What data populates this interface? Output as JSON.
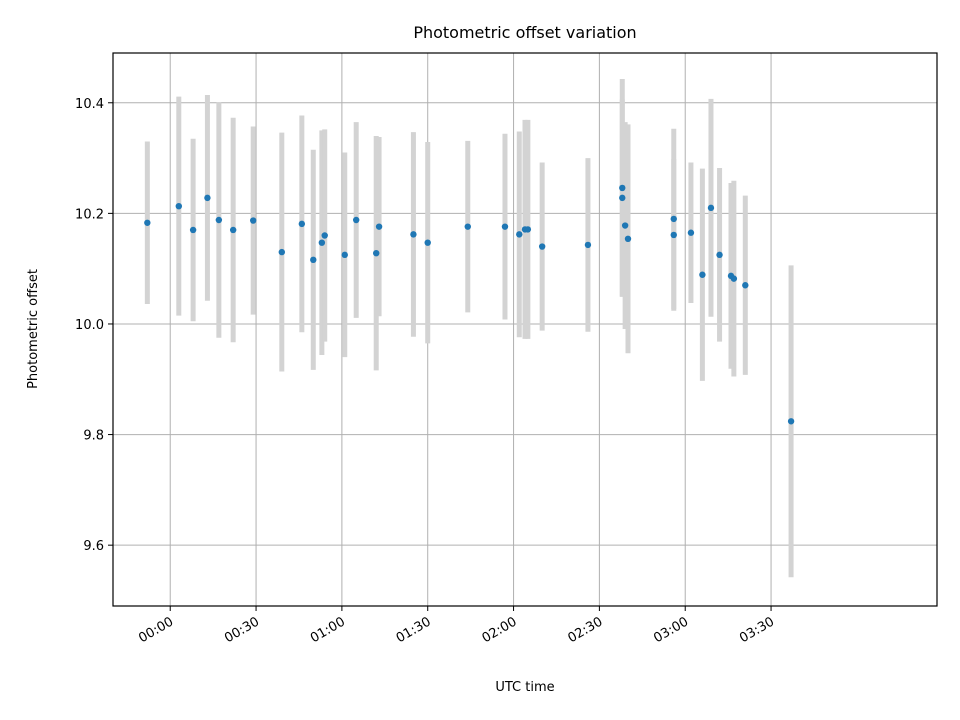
{
  "chart_data": {
    "type": "scatter",
    "title": "Photometric offset variation",
    "xlabel": "UTC time",
    "ylabel": "Photometric offset",
    "grid": true,
    "xlim": [
      "23:40",
      "04:28"
    ],
    "ylim": [
      9.49,
      10.49
    ],
    "x_ticks": [
      "00:00",
      "00:30",
      "01:00",
      "01:30",
      "02:00",
      "02:30",
      "03:00",
      "03:30"
    ],
    "y_ticks": [
      "9.6",
      "9.8",
      "10.0",
      "10.2",
      "10.4"
    ],
    "colors": {
      "points": "#1f77b4",
      "errorbars": "#d3d3d3",
      "grid": "#b0b0b0"
    },
    "points": [
      {
        "x": "23:52",
        "y": 10.183,
        "yerr": 0.147
      },
      {
        "x": "00:03",
        "y": 10.213,
        "yerr": 0.198
      },
      {
        "x": "00:08",
        "y": 10.17,
        "yerr": 0.165
      },
      {
        "x": "00:13",
        "y": 10.228,
        "yerr": 0.186
      },
      {
        "x": "00:17",
        "y": 10.188,
        "yerr": 0.213
      },
      {
        "x": "00:22",
        "y": 10.17,
        "yerr": 0.203
      },
      {
        "x": "00:29",
        "y": 10.187,
        "yerr": 0.17
      },
      {
        "x": "00:39",
        "y": 10.13,
        "yerr": 0.216
      },
      {
        "x": "00:46",
        "y": 10.181,
        "yerr": 0.196
      },
      {
        "x": "00:50",
        "y": 10.116,
        "yerr": 0.199
      },
      {
        "x": "00:53",
        "y": 10.147,
        "yerr": 0.203
      },
      {
        "x": "00:54",
        "y": 10.16,
        "yerr": 0.192
      },
      {
        "x": "01:01",
        "y": 10.125,
        "yerr": 0.185
      },
      {
        "x": "01:05",
        "y": 10.188,
        "yerr": 0.177
      },
      {
        "x": "01:12",
        "y": 10.128,
        "yerr": 0.212
      },
      {
        "x": "01:13",
        "y": 10.176,
        "yerr": 0.162
      },
      {
        "x": "01:25",
        "y": 10.162,
        "yerr": 0.185
      },
      {
        "x": "01:30",
        "y": 10.147,
        "yerr": 0.182
      },
      {
        "x": "01:44",
        "y": 10.176,
        "yerr": 0.155
      },
      {
        "x": "01:57",
        "y": 10.176,
        "yerr": 0.168
      },
      {
        "x": "02:02",
        "y": 10.162,
        "yerr": 0.186
      },
      {
        "x": "02:04",
        "y": 10.171,
        "yerr": 0.198
      },
      {
        "x": "02:05",
        "y": 10.171,
        "yerr": 0.198
      },
      {
        "x": "02:10",
        "y": 10.14,
        "yerr": 0.152
      },
      {
        "x": "02:26",
        "y": 10.143,
        "yerr": 0.157
      },
      {
        "x": "02:38",
        "y": 10.246,
        "yerr": 0.197
      },
      {
        "x": "02:38",
        "y": 10.228,
        "yerr": 0.178
      },
      {
        "x": "02:39",
        "y": 10.178,
        "yerr": 0.187
      },
      {
        "x": "02:40",
        "y": 10.154,
        "yerr": 0.207
      },
      {
        "x": "02:56",
        "y": 10.19,
        "yerr": 0.163
      },
      {
        "x": "02:56",
        "y": 10.161,
        "yerr": 0.137
      },
      {
        "x": "03:02",
        "y": 10.165,
        "yerr": 0.127
      },
      {
        "x": "03:06",
        "y": 10.089,
        "yerr": 0.192
      },
      {
        "x": "03:09",
        "y": 10.21,
        "yerr": 0.197
      },
      {
        "x": "03:12",
        "y": 10.125,
        "yerr": 0.157
      },
      {
        "x": "03:16",
        "y": 10.087,
        "yerr": 0.168
      },
      {
        "x": "03:17",
        "y": 10.082,
        "yerr": 0.177
      },
      {
        "x": "03:21",
        "y": 10.07,
        "yerr": 0.162
      },
      {
        "x": "03:37",
        "y": 9.824,
        "yerr": 0.282
      }
    ]
  }
}
